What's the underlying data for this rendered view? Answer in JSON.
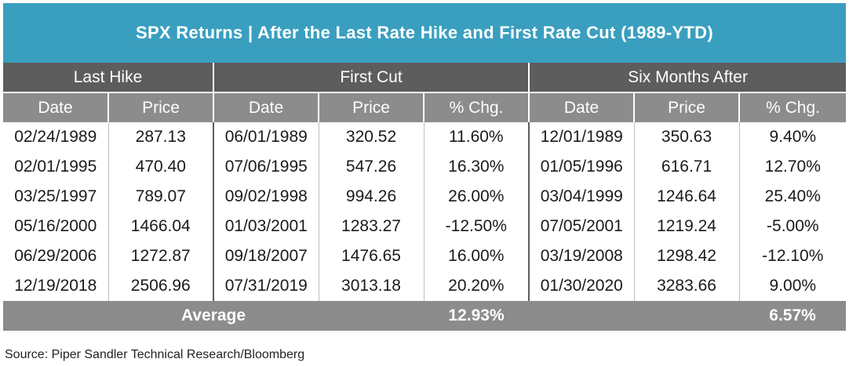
{
  "title": "SPX Returns | After the Last Rate Hike and First Rate Cut (1989-YTD)",
  "groups": {
    "last_hike": "Last Hike",
    "first_cut": "First Cut",
    "six_months": "Six Months After"
  },
  "columns": [
    "Date",
    "Price",
    "Date",
    "Price",
    "% Chg.",
    "Date",
    "Price",
    "% Chg."
  ],
  "rows": [
    {
      "hike_date": "02/24/1989",
      "hike_price": "287.13",
      "cut_date": "06/01/1989",
      "cut_price": "320.52",
      "cut_chg": "11.60%",
      "six_date": "12/01/1989",
      "six_price": "350.63",
      "six_chg": "9.40%"
    },
    {
      "hike_date": "02/01/1995",
      "hike_price": "470.40",
      "cut_date": "07/06/1995",
      "cut_price": "547.26",
      "cut_chg": "16.30%",
      "six_date": "01/05/1996",
      "six_price": "616.71",
      "six_chg": "12.70%"
    },
    {
      "hike_date": "03/25/1997",
      "hike_price": "789.07",
      "cut_date": "09/02/1998",
      "cut_price": "994.26",
      "cut_chg": "26.00%",
      "six_date": "03/04/1999",
      "six_price": "1246.64",
      "six_chg": "25.40%"
    },
    {
      "hike_date": "05/16/2000",
      "hike_price": "1466.04",
      "cut_date": "01/03/2001",
      "cut_price": "1283.27",
      "cut_chg": "-12.50%",
      "six_date": "07/05/2001",
      "six_price": "1219.24",
      "six_chg": "-5.00%"
    },
    {
      "hike_date": "06/29/2006",
      "hike_price": "1272.87",
      "cut_date": "09/18/2007",
      "cut_price": "1476.65",
      "cut_chg": "16.00%",
      "six_date": "03/19/2008",
      "six_price": "1298.42",
      "six_chg": "-12.10%"
    },
    {
      "hike_date": "12/19/2018",
      "hike_price": "2506.96",
      "cut_date": "07/31/2019",
      "cut_price": "3013.18",
      "cut_chg": "20.20%",
      "six_date": "01/30/2020",
      "six_price": "3283.66",
      "six_chg": "9.00%"
    }
  ],
  "average": {
    "label": "Average",
    "cut_chg": "12.93%",
    "six_chg": "6.57%"
  },
  "source": "Source: Piper Sandler Technical Research/Bloomberg",
  "colors": {
    "title_bg": "#3a9fbf",
    "group_header_bg": "#5d5d5d",
    "sub_header_bg": "#8c8c8c",
    "negative": "#c0262d"
  }
}
